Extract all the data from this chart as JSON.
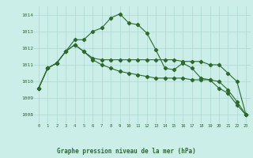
{
  "title": "Graphe pression niveau de la mer (hPa)",
  "background_color": "#cceee8",
  "line_color": "#2d6a2d",
  "grid_color": "#aad8d0",
  "x_labels": [
    "0",
    "1",
    "2",
    "3",
    "4",
    "5",
    "6",
    "7",
    "8",
    "9",
    "10",
    "11",
    "12",
    "13",
    "14",
    "15",
    "16",
    "17",
    "18",
    "19",
    "20",
    "21",
    "22",
    "23"
  ],
  "ylim": [
    1007.5,
    1014.5
  ],
  "yticks": [
    1008,
    1009,
    1010,
    1011,
    1012,
    1013,
    1014
  ],
  "series1": [
    1009.6,
    1010.8,
    1011.1,
    1011.8,
    1012.5,
    1012.5,
    1013.0,
    1013.2,
    1013.8,
    1014.05,
    1013.5,
    1013.4,
    1012.9,
    1011.9,
    1010.8,
    1010.7,
    1011.1,
    1010.8,
    1010.2,
    1010.1,
    1009.6,
    1009.3,
    1008.6,
    1008.0
  ],
  "series2": [
    1009.6,
    1010.8,
    1011.1,
    1011.8,
    1012.2,
    1011.8,
    1011.3,
    1011.0,
    1010.8,
    1010.6,
    1010.5,
    1010.4,
    1010.3,
    1010.2,
    1010.2,
    1010.2,
    1010.2,
    1010.1,
    1010.1,
    1010.1,
    1010.0,
    1009.5,
    1008.8,
    1008.0
  ],
  "series3": [
    1009.6,
    1010.8,
    1011.1,
    1011.8,
    1012.2,
    1011.8,
    1011.4,
    1011.3,
    1011.3,
    1011.3,
    1011.3,
    1011.3,
    1011.3,
    1011.3,
    1011.3,
    1011.3,
    1011.2,
    1011.2,
    1011.2,
    1011.0,
    1011.0,
    1010.5,
    1010.0,
    1008.0
  ]
}
